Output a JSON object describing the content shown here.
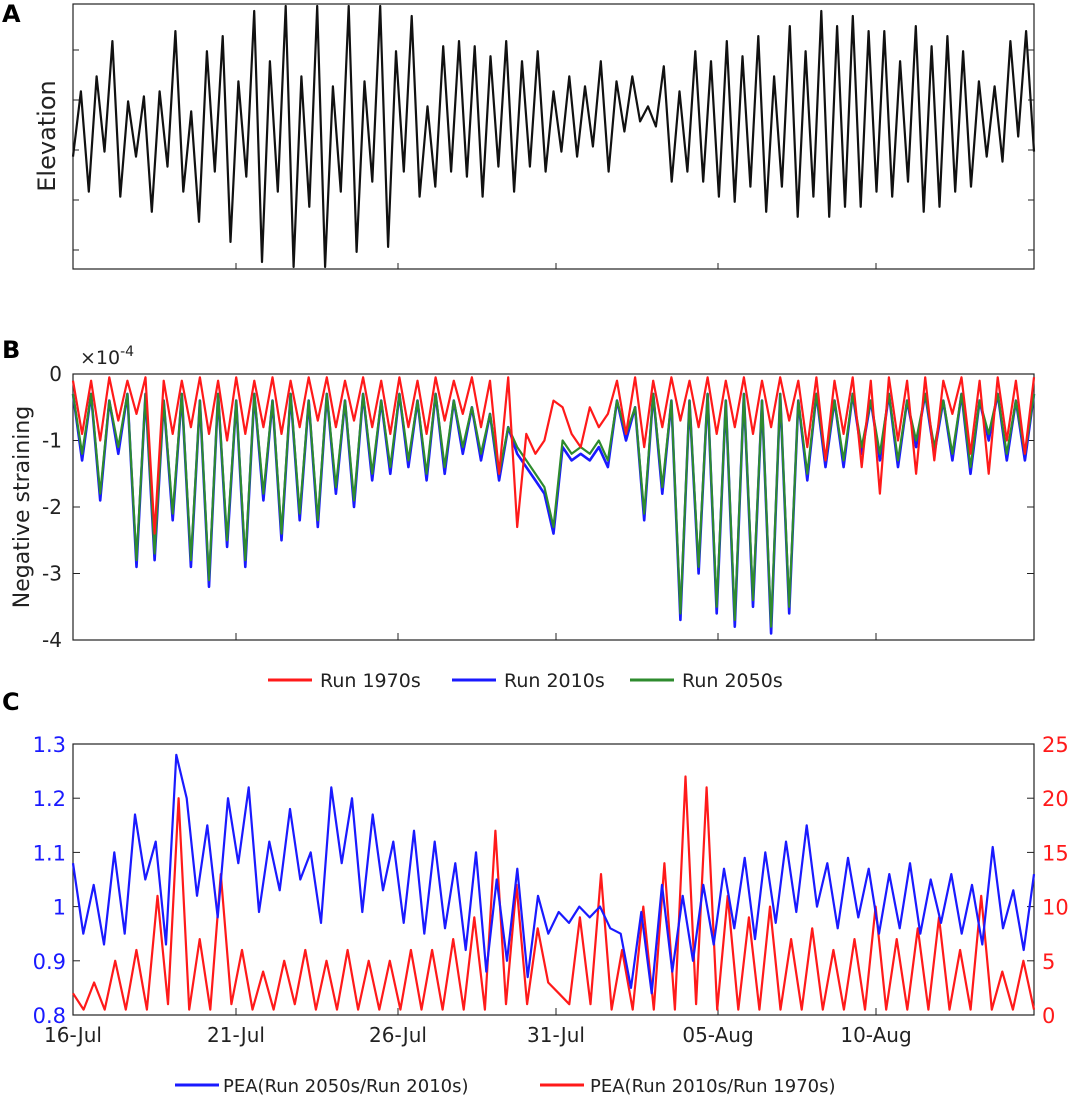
{
  "panel_labels": [
    "A",
    "B",
    "C"
  ],
  "colors": {
    "black": "#111111",
    "red": "#ff1a1a",
    "blue": "#1a1aff",
    "green": "#2e8b2e",
    "axis": "#222222",
    "tick_blue": "#1a1aff",
    "tick_red": "#ff1a1a"
  },
  "chart_data": [
    {
      "panel": "A",
      "type": "line",
      "title": "",
      "xlabel": "",
      "ylabel": "Elevation",
      "xlim": [
        0,
        30
      ],
      "ylim": [
        -1.3,
        1.3
      ],
      "series": [
        {
          "name": "Elevation",
          "color": "#111111",
          "values": [
            -0.2,
            0.45,
            -0.55,
            0.6,
            -0.15,
            0.95,
            -0.6,
            0.35,
            -0.2,
            0.4,
            -0.75,
            0.45,
            -0.3,
            1.05,
            -0.55,
            0.25,
            -0.85,
            0.85,
            -0.35,
            1.0,
            -1.05,
            0.55,
            -0.4,
            1.25,
            -1.25,
            0.75,
            -0.55,
            1.3,
            -1.3,
            0.6,
            -0.7,
            1.3,
            -1.3,
            0.5,
            -0.55,
            1.3,
            -1.15,
            0.55,
            -0.45,
            1.3,
            -1.1,
            0.85,
            -0.35,
            1.2,
            -0.6,
            0.3,
            -0.5,
            0.9,
            -0.35,
            0.95,
            -0.4,
            0.9,
            -0.6,
            0.8,
            -0.3,
            0.95,
            -0.55,
            0.75,
            -0.3,
            0.85,
            -0.35,
            0.45,
            -0.15,
            0.6,
            -0.2,
            0.5,
            -0.1,
            0.75,
            -0.35,
            0.55,
            0.05,
            0.6,
            0.15,
            0.3,
            0.1,
            0.7,
            -0.45,
            0.45,
            -0.35,
            0.85,
            -0.45,
            0.75,
            -0.6,
            0.95,
            -0.65,
            0.8,
            -0.5,
            1.0,
            -0.75,
            0.6,
            -0.5,
            1.1,
            -0.8,
            0.85,
            -0.6,
            1.25,
            -0.8,
            1.1,
            -0.7,
            1.2,
            -0.7,
            1.05,
            -0.55,
            1.05,
            -0.6,
            0.75,
            -0.45,
            1.1,
            -0.75,
            0.9,
            -0.7,
            1.0,
            -0.55,
            0.85,
            -0.5,
            0.55,
            -0.2,
            0.5,
            -0.25,
            0.95,
            0.0,
            1.05,
            -0.15
          ]
        }
      ]
    },
    {
      "panel": "B",
      "type": "line",
      "title": "",
      "xlabel": "",
      "ylabel": "Negative straining",
      "exponent_label": "×10",
      "exponent": "-4",
      "ylim": [
        -4,
        0
      ],
      "yticks": [
        0,
        -1,
        -2,
        -3,
        -4
      ],
      "yticklabels": [
        "0",
        "-1",
        "-2",
        "-3",
        "-4"
      ],
      "legend": [
        "Run 1970s",
        "Run 2010s",
        "Run 2050s"
      ],
      "series": [
        {
          "name": "Run 1970s",
          "color": "#ff1a1a",
          "values": [
            -0.1,
            -0.9,
            -0.1,
            -1.0,
            -0.05,
            -0.7,
            -0.1,
            -0.6,
            -0.05,
            -2.4,
            -0.1,
            -0.9,
            -0.1,
            -0.8,
            -0.05,
            -0.9,
            -0.1,
            -1.0,
            -0.05,
            -0.9,
            -0.1,
            -0.8,
            -0.05,
            -0.9,
            -0.1,
            -0.8,
            -0.05,
            -0.7,
            -0.05,
            -0.8,
            -0.1,
            -0.7,
            -0.05,
            -0.8,
            -0.1,
            -0.9,
            -0.05,
            -0.8,
            -0.1,
            -0.9,
            -0.05,
            -0.7,
            -0.1,
            -0.6,
            -0.05,
            -0.8,
            -0.1,
            -1.5,
            -0.05,
            -2.3,
            -0.9,
            -1.2,
            -1.0,
            -0.4,
            -0.5,
            -0.9,
            -1.1,
            -0.5,
            -0.8,
            -0.6,
            -0.1,
            -0.9,
            -0.05,
            -1.1,
            -0.1,
            -0.8,
            -0.05,
            -0.7,
            -0.1,
            -0.8,
            -0.05,
            -0.9,
            -0.1,
            -0.8,
            -0.05,
            -0.9,
            -0.1,
            -0.8,
            -0.05,
            -0.7,
            -0.1,
            -1.1,
            -0.05,
            -1.3,
            -0.1,
            -0.9,
            -0.05,
            -1.4,
            -0.1,
            -1.8,
            -0.05,
            -1.0,
            -0.1,
            -1.5,
            -0.05,
            -1.3,
            -0.1,
            -0.6,
            -0.05,
            -1.2,
            -0.1,
            -1.5,
            -0.05,
            -1.0,
            -0.1,
            -1.2,
            -0.05
          ]
        },
        {
          "name": "Run 2010s",
          "color": "#1a1aff",
          "values": [
            -0.3,
            -1.3,
            -0.3,
            -1.9,
            -0.4,
            -1.2,
            -0.3,
            -2.9,
            -0.3,
            -2.8,
            -0.4,
            -2.2,
            -0.3,
            -2.9,
            -0.4,
            -3.2,
            -0.3,
            -2.6,
            -0.4,
            -2.9,
            -0.3,
            -1.9,
            -0.4,
            -2.5,
            -0.3,
            -2.2,
            -0.4,
            -2.3,
            -0.3,
            -1.8,
            -0.4,
            -2.0,
            -0.3,
            -1.6,
            -0.4,
            -1.5,
            -0.3,
            -1.4,
            -0.4,
            -1.6,
            -0.3,
            -1.5,
            -0.4,
            -1.2,
            -0.5,
            -1.3,
            -0.6,
            -1.6,
            -0.8,
            -1.2,
            -1.4,
            -1.6,
            -1.8,
            -2.4,
            -1.1,
            -1.3,
            -1.2,
            -1.3,
            -1.1,
            -1.4,
            -0.4,
            -1.0,
            -0.5,
            -2.2,
            -0.3,
            -1.8,
            -0.4,
            -3.7,
            -0.4,
            -3.0,
            -0.3,
            -3.6,
            -0.4,
            -3.8,
            -0.3,
            -3.5,
            -0.4,
            -3.9,
            -0.3,
            -3.6,
            -0.4,
            -1.6,
            -0.3,
            -1.4,
            -0.4,
            -1.4,
            -0.3,
            -1.2,
            -0.4,
            -1.3,
            -0.3,
            -1.4,
            -0.4,
            -1.1,
            -0.3,
            -1.2,
            -0.4,
            -1.3,
            -0.3,
            -1.5,
            -0.4,
            -1.0,
            -0.3,
            -1.3,
            -0.4,
            -1.3,
            -0.3
          ]
        },
        {
          "name": "Run 2050s",
          "color": "#2e8b2e",
          "values": [
            -0.3,
            -1.2,
            -0.3,
            -1.8,
            -0.4,
            -1.1,
            -0.3,
            -2.8,
            -0.3,
            -2.7,
            -0.4,
            -2.1,
            -0.3,
            -2.8,
            -0.4,
            -3.1,
            -0.3,
            -2.5,
            -0.4,
            -2.8,
            -0.3,
            -1.8,
            -0.4,
            -2.4,
            -0.3,
            -2.1,
            -0.4,
            -2.2,
            -0.3,
            -1.7,
            -0.4,
            -1.9,
            -0.3,
            -1.5,
            -0.4,
            -1.4,
            -0.3,
            -1.3,
            -0.4,
            -1.5,
            -0.3,
            -1.4,
            -0.4,
            -1.1,
            -0.5,
            -1.2,
            -0.6,
            -1.5,
            -0.8,
            -1.1,
            -1.3,
            -1.5,
            -1.7,
            -2.3,
            -1.0,
            -1.2,
            -1.1,
            -1.2,
            -1.0,
            -1.3,
            -0.4,
            -0.9,
            -0.5,
            -2.1,
            -0.3,
            -1.7,
            -0.4,
            -3.6,
            -0.4,
            -2.9,
            -0.3,
            -3.5,
            -0.4,
            -3.7,
            -0.3,
            -3.4,
            -0.4,
            -3.8,
            -0.3,
            -3.5,
            -0.4,
            -1.5,
            -0.3,
            -1.3,
            -0.4,
            -1.3,
            -0.3,
            -1.1,
            -0.4,
            -1.2,
            -0.3,
            -1.3,
            -0.4,
            -1.0,
            -0.3,
            -1.1,
            -0.4,
            -1.2,
            -0.3,
            -1.4,
            -0.4,
            -0.9,
            -0.3,
            -1.2,
            -0.4,
            -1.2,
            -0.3
          ]
        }
      ]
    },
    {
      "panel": "C",
      "type": "line",
      "title": "",
      "xlabel": "",
      "ylabel": "",
      "ylim_left": [
        0.8,
        1.3
      ],
      "yticks_left": [
        "0.8",
        "0.9",
        "1",
        "1.1",
        "1.2",
        "1.3"
      ],
      "ylim_right": [
        0,
        25
      ],
      "yticks_right": [
        "0",
        "5",
        "10",
        "15",
        "20",
        "25"
      ],
      "xticklabels": [
        "16-Jul",
        "21-Jul",
        "26-Jul",
        "31-Jul",
        "05-Aug",
        "10-Aug"
      ],
      "legend": [
        "PEA(Run 2050s/Run 2010s)",
        "PEA(Run 2010s/Run 1970s)"
      ],
      "series": [
        {
          "name": "PEA(Run 2050s/Run 2010s)",
          "axis": "left",
          "color": "#1a1aff",
          "values": [
            1.08,
            0.95,
            1.04,
            0.93,
            1.1,
            0.95,
            1.17,
            1.05,
            1.12,
            0.93,
            1.28,
            1.2,
            1.02,
            1.15,
            0.98,
            1.2,
            1.08,
            1.22,
            0.99,
            1.12,
            1.03,
            1.18,
            1.05,
            1.1,
            0.97,
            1.22,
            1.08,
            1.2,
            0.99,
            1.17,
            1.03,
            1.12,
            0.97,
            1.14,
            0.95,
            1.12,
            0.96,
            1.08,
            0.92,
            1.1,
            0.88,
            1.05,
            0.9,
            1.07,
            0.87,
            1.02,
            0.95,
            0.99,
            0.97,
            1.0,
            0.98,
            1.0,
            0.96,
            0.95,
            0.85,
            0.99,
            0.84,
            1.04,
            0.88,
            1.02,
            0.9,
            1.04,
            0.93,
            1.07,
            0.96,
            1.09,
            0.94,
            1.1,
            0.97,
            1.12,
            0.99,
            1.15,
            1.0,
            1.08,
            0.96,
            1.09,
            0.98,
            1.07,
            0.95,
            1.06,
            0.96,
            1.08,
            0.95,
            1.05,
            0.97,
            1.06,
            0.95,
            1.04,
            0.93,
            1.11,
            0.96,
            1.03,
            0.92,
            1.06
          ]
        },
        {
          "name": "PEA(Run 2010s/Run 1970s)",
          "axis": "right",
          "color": "#ff1a1a",
          "values": [
            2,
            0.5,
            3,
            0.5,
            5,
            0.5,
            6,
            0.5,
            11,
            1,
            20,
            0.5,
            7,
            0.5,
            13,
            1,
            6,
            0.5,
            4,
            0.5,
            5,
            1,
            6,
            0.5,
            5,
            0.5,
            6,
            0.5,
            5,
            0.5,
            5,
            0.5,
            6,
            0.5,
            6,
            0.5,
            7,
            0.5,
            9,
            0.5,
            17,
            1,
            12,
            1,
            8,
            3,
            2,
            1,
            9,
            1,
            13,
            0.5,
            6,
            0.5,
            10,
            0.5,
            14,
            0.5,
            22,
            1,
            21,
            0.5,
            11,
            0.5,
            9,
            0.5,
            10,
            0.5,
            7,
            0.5,
            8,
            0.5,
            6,
            0.5,
            7,
            0.5,
            10,
            0.5,
            7,
            0.5,
            8,
            0.5,
            9,
            0.5,
            6,
            0.5,
            11,
            0.5,
            4,
            0.5,
            5,
            0.5
          ]
        }
      ]
    }
  ]
}
